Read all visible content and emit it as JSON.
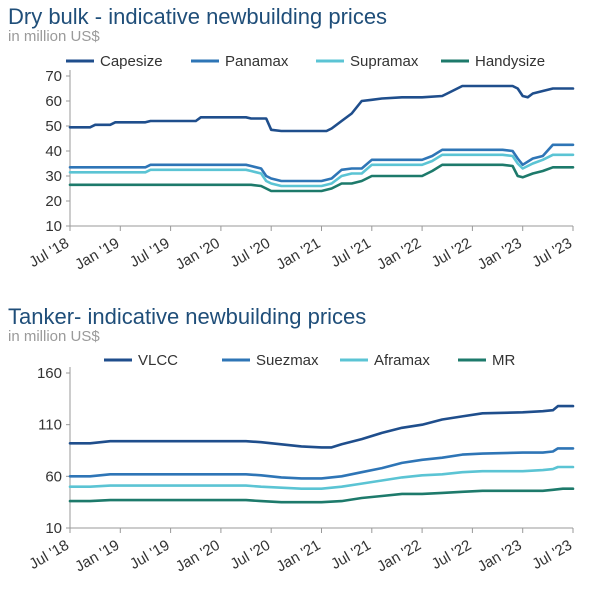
{
  "chart_data": [
    {
      "type": "line",
      "title": "Dry bulk - indicative newbuilding prices",
      "subtitle": "in million US$",
      "xlabel": "",
      "ylabel": "",
      "ylim": [
        10,
        70
      ],
      "yticks": [
        10,
        20,
        30,
        40,
        50,
        60,
        70
      ],
      "xlim": [
        2018.5,
        2023.5
      ],
      "xtick_labels": [
        "Jul '18",
        "Jan '19",
        "Jul '19",
        "Jan '20",
        "Jul '20",
        "Jan '21",
        "Jul '21",
        "Jan '22",
        "Jul '22",
        "Jan '23",
        "Jul '23"
      ],
      "grid": false,
      "legend": "top",
      "series": [
        {
          "name": "Capesize",
          "color": "#1f4e8c",
          "x": [
            2018.5,
            2018.7,
            2018.75,
            2018.9,
            2018.95,
            2019.25,
            2019.3,
            2019.75,
            2019.8,
            2020.0,
            2020.25,
            2020.3,
            2020.45,
            2020.5,
            2020.6,
            2021.0,
            2021.05,
            2021.1,
            2021.2,
            2021.3,
            2021.4,
            2021.5,
            2021.6,
            2021.8,
            2022.0,
            2022.2,
            2022.25,
            2022.4,
            2022.5,
            2022.75,
            2022.8,
            2022.9,
            2022.95,
            2023.0,
            2023.05,
            2023.1,
            2023.2,
            2023.3,
            2023.5
          ],
          "values": [
            49.5,
            49.5,
            50.5,
            50.5,
            51.5,
            51.5,
            52,
            52,
            53.5,
            53.5,
            53.5,
            53,
            53,
            48.5,
            48,
            48,
            48,
            49,
            52,
            55,
            60,
            60.5,
            61,
            61.5,
            61.5,
            62,
            63,
            66,
            66,
            66,
            66,
            66,
            65,
            62,
            61.5,
            63,
            64,
            65,
            65
          ]
        },
        {
          "name": "Panamax",
          "color": "#2e75b6",
          "x": [
            2018.5,
            2019.25,
            2019.3,
            2020.0,
            2020.25,
            2020.3,
            2020.4,
            2020.45,
            2020.5,
            2020.6,
            2020.8,
            2021.0,
            2021.1,
            2021.2,
            2021.3,
            2021.4,
            2021.5,
            2022.0,
            2022.1,
            2022.2,
            2022.8,
            2022.9,
            2022.95,
            2023.0,
            2023.1,
            2023.2,
            2023.3,
            2023.5
          ],
          "values": [
            33.5,
            33.5,
            34.5,
            34.5,
            34.5,
            34,
            33,
            30,
            29,
            28,
            28,
            28,
            29,
            32.5,
            33,
            33,
            36.5,
            36.5,
            38,
            40.5,
            40.5,
            40,
            37,
            34.5,
            37,
            38,
            42.5,
            42.5
          ]
        },
        {
          "name": "Supramax",
          "color": "#5bc4d4",
          "x": [
            2018.5,
            2019.25,
            2019.3,
            2020.0,
            2020.25,
            2020.3,
            2020.4,
            2020.45,
            2020.5,
            2020.6,
            2021.0,
            2021.1,
            2021.2,
            2021.3,
            2021.4,
            2021.5,
            2022.0,
            2022.1,
            2022.2,
            2022.8,
            2022.9,
            2022.95,
            2023.0,
            2023.1,
            2023.2,
            2023.3,
            2023.5
          ],
          "values": [
            31.5,
            31.5,
            32.5,
            32.5,
            32.5,
            32,
            31,
            28,
            27,
            26,
            26,
            27,
            30,
            31,
            31,
            34.5,
            34.5,
            36,
            38.5,
            38.5,
            38,
            35,
            33,
            35,
            36.5,
            38.5,
            38.5
          ]
        },
        {
          "name": "Handysize",
          "color": "#1d7a6b",
          "x": [
            2018.5,
            2020.3,
            2020.4,
            2020.45,
            2020.5,
            2021.0,
            2021.1,
            2021.2,
            2021.3,
            2021.4,
            2021.5,
            2022.0,
            2022.1,
            2022.2,
            2022.8,
            2022.9,
            2022.95,
            2023.0,
            2023.1,
            2023.2,
            2023.3,
            2023.5
          ],
          "values": [
            26.5,
            26.5,
            26,
            25,
            24,
            24,
            25,
            27,
            27,
            28,
            30,
            30,
            32,
            34.5,
            34.5,
            34,
            30,
            29.5,
            31,
            32,
            33.5,
            33.5
          ]
        }
      ]
    },
    {
      "type": "line",
      "title": "Tanker- indicative newbuilding prices",
      "subtitle": "in million US$",
      "xlabel": "",
      "ylabel": "",
      "ylim": [
        10,
        160
      ],
      "yticks": [
        10,
        60,
        110,
        160
      ],
      "xlim": [
        2018.5,
        2023.5
      ],
      "xtick_labels": [
        "Jul '18",
        "Jan '19",
        "Jul '19",
        "Jan '20",
        "Jul '20",
        "Jan '21",
        "Jul '21",
        "Jan '22",
        "Jul '22",
        "Jan '23",
        "Jul '23"
      ],
      "grid": false,
      "legend": "top",
      "series": [
        {
          "name": "VLCC",
          "color": "#1f4e8c",
          "x": [
            2018.5,
            2018.7,
            2018.9,
            2020.25,
            2020.4,
            2020.6,
            2020.8,
            2021.0,
            2021.1,
            2021.2,
            2021.4,
            2021.6,
            2021.8,
            2022.0,
            2022.2,
            2022.4,
            2022.6,
            2023.0,
            2023.2,
            2023.3,
            2023.35,
            2023.5
          ],
          "values": [
            92,
            92,
            94,
            94,
            93,
            91,
            89,
            88,
            88,
            91,
            96,
            102,
            107,
            110,
            115,
            118,
            121,
            122,
            123,
            124,
            128,
            128
          ]
        },
        {
          "name": "Suezmax",
          "color": "#2e75b6",
          "x": [
            2018.5,
            2018.7,
            2018.9,
            2020.25,
            2020.4,
            2020.6,
            2020.8,
            2021.0,
            2021.2,
            2021.4,
            2021.6,
            2021.8,
            2022.0,
            2022.2,
            2022.4,
            2022.6,
            2023.0,
            2023.2,
            2023.3,
            2023.35,
            2023.5
          ],
          "values": [
            60,
            60,
            62,
            62,
            61,
            59,
            58,
            58,
            60,
            64,
            68,
            73,
            76,
            78,
            81,
            82,
            83,
            83,
            84,
            87,
            87
          ]
        },
        {
          "name": "Aframax",
          "color": "#5bc4d4",
          "x": [
            2018.5,
            2018.7,
            2018.9,
            2020.25,
            2020.4,
            2020.6,
            2020.8,
            2021.0,
            2021.2,
            2021.4,
            2021.6,
            2021.8,
            2022.0,
            2022.2,
            2022.4,
            2022.6,
            2023.0,
            2023.2,
            2023.3,
            2023.35,
            2023.5
          ],
          "values": [
            50,
            50,
            51,
            51,
            50,
            49,
            48,
            48,
            50,
            53,
            56,
            59,
            61,
            62,
            64,
            65,
            65,
            66,
            67,
            69,
            69
          ]
        },
        {
          "name": "MR",
          "color": "#1d7a6b",
          "x": [
            2018.5,
            2018.7,
            2018.9,
            2020.25,
            2020.4,
            2020.6,
            2021.0,
            2021.2,
            2021.4,
            2021.6,
            2021.8,
            2022.0,
            2022.2,
            2022.4,
            2022.6,
            2023.0,
            2023.2,
            2023.3,
            2023.4,
            2023.5
          ],
          "values": [
            36,
            36,
            37,
            37,
            36,
            35,
            35,
            36,
            39,
            41,
            43,
            43,
            44,
            45,
            46,
            46,
            46,
            47,
            48,
            48
          ]
        }
      ]
    }
  ]
}
